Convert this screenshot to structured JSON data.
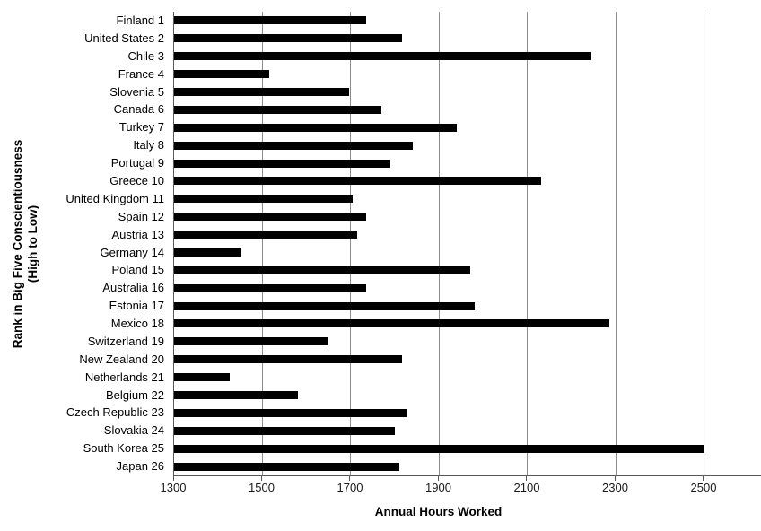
{
  "chart_data": {
    "type": "bar",
    "orientation": "horizontal",
    "xlabel": "Annual Hours Worked",
    "ylabel": "Rank in Big Five Conscientiousness (High to Low)",
    "ylabel_lines": [
      "Rank in Big Five Conscientiousness",
      "(High to Low)"
    ],
    "categories": [
      "Finland 1",
      "United States 2",
      "Chile 3",
      "France 4",
      "Slovenia 5",
      "Canada 6",
      "Turkey 7",
      "Italy 8",
      "Portugal 9",
      "Greece 10",
      "United Kingdom 11",
      "Spain 12",
      "Austria 13",
      "Germany 14",
      "Poland 15",
      "Australia 16",
      "Estonia 17",
      "Mexico 18",
      "Switzerland 19",
      "New Zealand 20",
      "Netherlands 21",
      "Belgium 22",
      "Czech Republic 23",
      "Slovakia 24",
      "South Korea 25",
      "Japan 26"
    ],
    "values": [
      1735,
      1815,
      2245,
      1515,
      1695,
      1770,
      1940,
      1840,
      1790,
      2130,
      1705,
      1735,
      1715,
      1450,
      1970,
      1735,
      1980,
      2285,
      1650,
      1815,
      1425,
      1580,
      1825,
      1800,
      2500,
      1810
    ],
    "x_ticks": [
      1300,
      1500,
      1700,
      1900,
      2100,
      2300,
      2500
    ],
    "xlim": [
      1300,
      2630
    ],
    "grid": "vertical-major-only",
    "legend": "none",
    "bar_color": "#000000",
    "gridline_color": "#8c8c8c",
    "axis_color": "#595959"
  }
}
